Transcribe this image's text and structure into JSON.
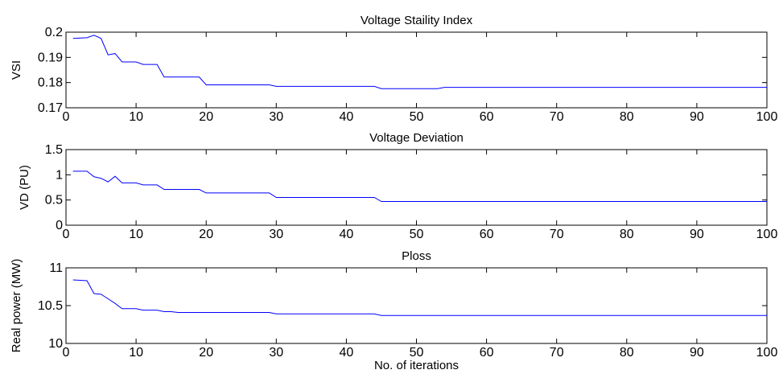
{
  "chart_data": [
    {
      "type": "line",
      "title": "Voltage Staility Index",
      "xlabel": "",
      "ylabel": "VSI",
      "xlim": [
        0,
        100
      ],
      "ylim": [
        0.17,
        0.2
      ],
      "xticks": [
        "0",
        "10",
        "20",
        "30",
        "40",
        "50",
        "60",
        "70",
        "80",
        "90",
        "100"
      ],
      "yticks": [
        "0.17",
        "0.18",
        "0.19",
        "0.2"
      ],
      "grid": false,
      "series": [
        {
          "color": "#0000ff",
          "x": [
            1,
            3,
            4,
            5,
            6,
            7,
            8,
            9,
            10,
            11,
            12,
            13,
            14,
            19,
            20,
            29,
            30,
            44,
            45,
            53,
            54,
            100
          ],
          "y": [
            0.1975,
            0.1978,
            0.1988,
            0.1975,
            0.191,
            0.1915,
            0.1882,
            0.1882,
            0.1882,
            0.1872,
            0.1872,
            0.1872,
            0.1822,
            0.1822,
            0.1791,
            0.1791,
            0.1785,
            0.1785,
            0.1776,
            0.1776,
            0.1781,
            0.1781
          ]
        }
      ]
    },
    {
      "type": "line",
      "title": "Voltage Deviation",
      "xlabel": "",
      "ylabel": "VD (PU)",
      "xlim": [
        0,
        100
      ],
      "ylim": [
        0,
        1.5
      ],
      "xticks": [
        "0",
        "10",
        "20",
        "30",
        "40",
        "50",
        "60",
        "70",
        "80",
        "90",
        "100"
      ],
      "yticks": [
        "0",
        "0.5",
        "1",
        "1.5"
      ],
      "grid": false,
      "series": [
        {
          "color": "#0000ff",
          "x": [
            1,
            3,
            4,
            5,
            6,
            7,
            8,
            9,
            10,
            11,
            13,
            14,
            19,
            20,
            29,
            30,
            44,
            45,
            100
          ],
          "y": [
            1.07,
            1.07,
            0.96,
            0.93,
            0.86,
            0.97,
            0.84,
            0.84,
            0.84,
            0.8,
            0.8,
            0.71,
            0.71,
            0.64,
            0.64,
            0.55,
            0.55,
            0.47,
            0.47
          ]
        }
      ]
    },
    {
      "type": "line",
      "title": "Ploss",
      "xlabel": "No. of iterations",
      "ylabel": "Real power (MW)",
      "xlim": [
        0,
        100
      ],
      "ylim": [
        10,
        11
      ],
      "xticks": [
        "0",
        "10",
        "20",
        "30",
        "40",
        "50",
        "60",
        "70",
        "80",
        "90",
        "100"
      ],
      "yticks": [
        "10",
        "10.5",
        "11"
      ],
      "grid": false,
      "series": [
        {
          "color": "#0000ff",
          "x": [
            1,
            3,
            4,
            5,
            6,
            7,
            8,
            9,
            10,
            11,
            13,
            14,
            15,
            16,
            29,
            30,
            44,
            45,
            100
          ],
          "y": [
            10.84,
            10.83,
            10.66,
            10.65,
            10.59,
            10.53,
            10.46,
            10.46,
            10.46,
            10.44,
            10.44,
            10.42,
            10.42,
            10.41,
            10.41,
            10.39,
            10.39,
            10.37,
            10.37
          ]
        }
      ]
    }
  ]
}
